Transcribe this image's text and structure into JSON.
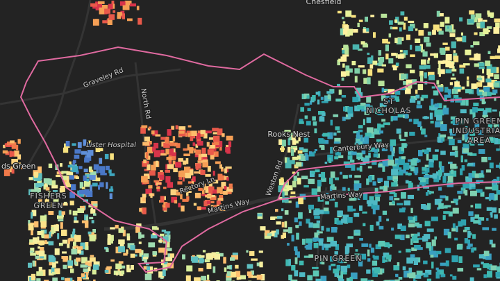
{
  "labels": {
    "chesfield": "Chesfield",
    "graveley_rd": "Graveley Rd",
    "north_rd": "North Rd",
    "lister_hospital": "Lister Hospital",
    "rooks_nest": "Rooks Nest",
    "st": "ST",
    "nicholas": "NICHOLAS",
    "canterbury_way": "Canterbury Way",
    "pin_green_1": "PIN GREEN",
    "industrial": "INDUSTRIAL",
    "area": "AREA",
    "martins_way_1": "Martins Way",
    "martins_way_2": "Martins Way",
    "rectory_ln": "Rectory Ln",
    "weston_rd": "Weston Rd",
    "fishers": "FISHERS",
    "green": "GREEN",
    "ds_green": "ds Green",
    "pin_green_2": "PIN GREEN"
  }
}
